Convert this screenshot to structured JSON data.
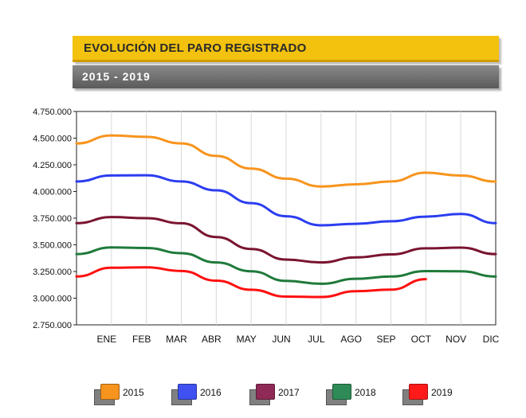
{
  "header": {
    "title": "EVOLUCIÓN DEL PARO REGISTRADO",
    "subtitle": "2015  -  2019"
  },
  "chart_data": {
    "type": "line",
    "title": "EVOLUCIÓN DEL PARO REGISTRADO",
    "subtitle": "2015 - 2019",
    "categories": [
      "ENE",
      "FEB",
      "MAR",
      "ABR",
      "MAY",
      "JUN",
      "JUL",
      "AGO",
      "SEP",
      "OCT",
      "NOV",
      "DIC"
    ],
    "ylim": [
      2750000,
      4750000
    ],
    "yticks": [
      2750000,
      3000000,
      3250000,
      3500000,
      3750000,
      4000000,
      4250000,
      4500000,
      4750000
    ],
    "ytick_labels": [
      "2.750.000",
      "3.000.000",
      "3.250.000",
      "3.500.000",
      "3.750.000",
      "4.000.000",
      "4.250.000",
      "4.500.000",
      "4.750.000"
    ],
    "grid": "vertical",
    "legend_position": "bottom",
    "series_start": 4450000,
    "series": [
      {
        "name": "2015",
        "color": "#f7941d",
        "start": 4450000,
        "values": [
          4525000,
          4512000,
          4451000,
          4333000,
          4215000,
          4120000,
          4047000,
          4067000,
          4094000,
          4176000,
          4149000,
          4093000
        ]
      },
      {
        "name": "2016",
        "color": "#2b3df0",
        "start": 4094000,
        "values": [
          4150000,
          4152000,
          4094000,
          4011000,
          3891000,
          3768000,
          3683000,
          3697000,
          3721000,
          3764000,
          3789000,
          3703000
        ]
      },
      {
        "name": "2017",
        "color": "#7a1430",
        "start": 3703000,
        "values": [
          3760000,
          3750000,
          3702000,
          3573000,
          3461000,
          3362000,
          3335000,
          3382000,
          3410000,
          3467000,
          3474000,
          3413000
        ]
      },
      {
        "name": "2018",
        "color": "#1f7a3a",
        "start": 3413000,
        "values": [
          3476000,
          3470000,
          3422000,
          3335000,
          3252000,
          3162000,
          3135000,
          3182000,
          3203000,
          3254000,
          3252000,
          3203000
        ]
      },
      {
        "name": "2019",
        "color": "#ff0f0f",
        "start": 3203000,
        "values": [
          3285000,
          3289000,
          3255000,
          3164000,
          3079000,
          3015000,
          3011000,
          3065000,
          3080000,
          3178000,
          null,
          null
        ]
      }
    ]
  },
  "legend": {
    "items": [
      {
        "label": "2015",
        "color": "#f7941d"
      },
      {
        "label": "2016",
        "color": "#3f51f0"
      },
      {
        "label": "2017",
        "color": "#8e2a55"
      },
      {
        "label": "2018",
        "color": "#2e8b57"
      },
      {
        "label": "2019",
        "color": "#ff1a1a"
      }
    ]
  }
}
